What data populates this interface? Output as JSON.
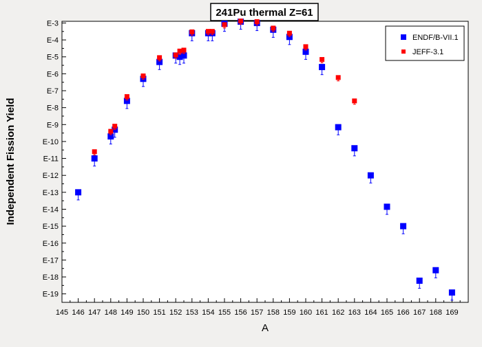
{
  "chart_data": {
    "type": "scatter",
    "title": "241Pu thermal Z=61",
    "xlabel": "A",
    "ylabel": "Independent Fission Yield",
    "x_ticks": [
      145,
      146,
      147,
      148,
      149,
      150,
      151,
      152,
      153,
      154,
      155,
      156,
      157,
      158,
      159,
      160,
      161,
      162,
      163,
      164,
      165,
      166,
      167,
      168,
      169
    ],
    "xlim": [
      145,
      170
    ],
    "y_scale": "log",
    "ylim_exponent": [
      -19.5,
      -2.9
    ],
    "y_tick_exponents": [
      -3,
      -4,
      -5,
      -6,
      -7,
      -8,
      -9,
      -10,
      -11,
      -12,
      -13,
      -14,
      -15,
      -16,
      -17,
      -18,
      -19
    ],
    "y_tick_labels": [
      "E-3",
      "E-4",
      "E-5",
      "E-6",
      "E-7",
      "E-8",
      "E-9",
      "E-10",
      "E-11",
      "E-12",
      "E-13",
      "E-14",
      "E-15",
      "E-16",
      "E-17",
      "E-18",
      "E-19"
    ],
    "grid": false,
    "legend_position": "top-right",
    "series": [
      {
        "name": "ENDF/B-VII.1",
        "color": "#0000ff",
        "marker": "square",
        "points": [
          {
            "x": 146,
            "y": 1e-13
          },
          {
            "x": 147,
            "y": 1e-11
          },
          {
            "x": 148,
            "y": 2e-10
          },
          {
            "x": 148.25,
            "y": 5e-10
          },
          {
            "x": 149,
            "y": 2.5e-08
          },
          {
            "x": 150,
            "y": 5e-07
          },
          {
            "x": 151,
            "y": 5e-06
          },
          {
            "x": 152,
            "y": 1.2e-05
          },
          {
            "x": 152.25,
            "y": 1e-05
          },
          {
            "x": 152.5,
            "y": 1.2e-05
          },
          {
            "x": 153,
            "y": 0.00025
          },
          {
            "x": 154,
            "y": 0.00025
          },
          {
            "x": 154.25,
            "y": 0.00025
          },
          {
            "x": 155,
            "y": 0.0009
          },
          {
            "x": 156,
            "y": 0.0012
          },
          {
            "x": 157,
            "y": 0.001
          },
          {
            "x": 158,
            "y": 0.0004
          },
          {
            "x": 159,
            "y": 0.00015
          },
          {
            "x": 160,
            "y": 2e-05
          },
          {
            "x": 161,
            "y": 2.5e-06
          },
          {
            "x": 162,
            "y": 7e-10
          },
          {
            "x": 163,
            "y": 4e-11
          },
          {
            "x": 164,
            "y": 1e-12
          },
          {
            "x": 165,
            "y": 1.4e-14
          },
          {
            "x": 166,
            "y": 1e-15
          },
          {
            "x": 167,
            "y": 6e-19
          },
          {
            "x": 168,
            "y": 2.5e-18
          },
          {
            "x": 169,
            "y": 1.2e-19
          }
        ],
        "error_low_exponent": 0.45,
        "error_high_exponent": 0.15
      },
      {
        "name": "JEFF-3.1",
        "color": "#ff0000",
        "marker": "square",
        "points": [
          {
            "x": 147,
            "y": 2.5e-11
          },
          {
            "x": 148,
            "y": 4e-10
          },
          {
            "x": 148.25,
            "y": 8e-10
          },
          {
            "x": 149,
            "y": 4.5e-08
          },
          {
            "x": 150,
            "y": 7.5e-07
          },
          {
            "x": 151,
            "y": 9e-06
          },
          {
            "x": 152,
            "y": 1.3e-05
          },
          {
            "x": 152.25,
            "y": 2.2e-05
          },
          {
            "x": 152.5,
            "y": 2.5e-05
          },
          {
            "x": 153,
            "y": 0.0003
          },
          {
            "x": 154,
            "y": 0.00032
          },
          {
            "x": 154.25,
            "y": 0.00032
          },
          {
            "x": 155,
            "y": 0.0008
          },
          {
            "x": 156,
            "y": 0.0013
          },
          {
            "x": 157,
            "y": 0.0012
          },
          {
            "x": 158,
            "y": 0.0005
          },
          {
            "x": 159,
            "y": 0.00025
          },
          {
            "x": 160,
            "y": 4e-05
          },
          {
            "x": 161,
            "y": 7e-06
          },
          {
            "x": 162,
            "y": 6e-07
          },
          {
            "x": 163,
            "y": 2.5e-08
          }
        ],
        "error_low_exponent": 0.2,
        "error_high_exponent": 0.1
      }
    ]
  }
}
